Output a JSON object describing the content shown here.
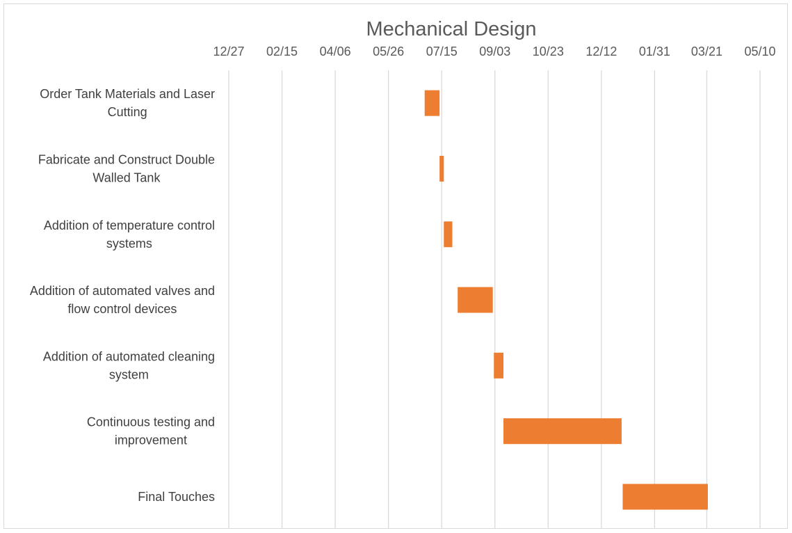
{
  "chart_data": {
    "type": "gantt",
    "title": "Mechanical Design",
    "xlabel": "",
    "ylabel": "",
    "x_axis_format": "MM/DD",
    "x_tick_labels": [
      "12/27",
      "02/15",
      "04/06",
      "05/26",
      "07/15",
      "09/03",
      "10/23",
      "12/12",
      "01/31",
      "03/21",
      "05/10"
    ],
    "x_tick_dates": [
      "2021-12-27",
      "2022-02-15",
      "2022-04-06",
      "2022-05-26",
      "2022-07-15",
      "2022-09-03",
      "2022-10-23",
      "2022-12-12",
      "2023-01-31",
      "2023-03-21",
      "2023-05-10"
    ],
    "xlim": [
      "2021-12-27",
      "2023-05-10"
    ],
    "grid": "vertical",
    "legend": "none",
    "bar_color": "#ed7d31",
    "grid_color": "#d9d9d9",
    "tasks": [
      {
        "label_lines": [
          "Order Tank Materials and Laser",
          "Cutting"
        ],
        "start": "2022-06-29",
        "end": "2022-07-13"
      },
      {
        "label_lines": [
          "Fabricate and Construct Double",
          "Walled Tank"
        ],
        "start": "2022-07-13",
        "end": "2022-07-17"
      },
      {
        "label_lines": [
          "Addition of temperature control",
          "systems"
        ],
        "start": "2022-07-17",
        "end": "2022-07-25"
      },
      {
        "label_lines": [
          "Addition of automated valves and",
          "flow control devices"
        ],
        "start": "2022-07-30",
        "end": "2022-09-01"
      },
      {
        "label_lines": [
          "Addition of automated cleaning",
          "system"
        ],
        "start": "2022-09-02",
        "end": "2022-09-11"
      },
      {
        "label_lines": [
          "Continuous testing and",
          "improvement"
        ],
        "start": "2022-09-11",
        "end": "2022-12-31"
      },
      {
        "label_lines": [
          "Final Touches"
        ],
        "start": "2023-01-01",
        "end": "2023-03-22"
      }
    ]
  }
}
